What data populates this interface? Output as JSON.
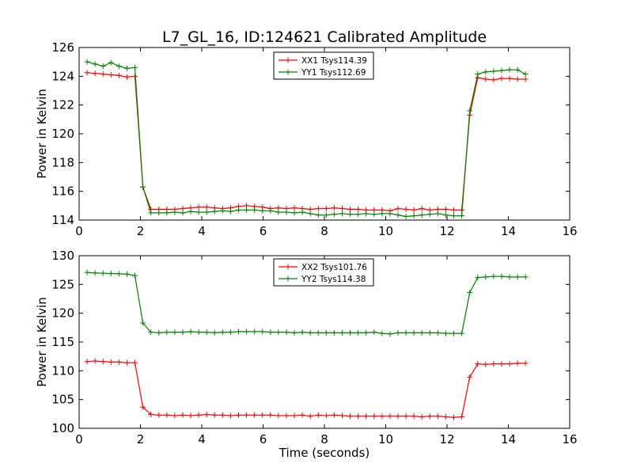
{
  "title": "L7_GL_16, ID:124621 Calibrated Amplitude",
  "chart_data": [
    {
      "type": "line",
      "ylabel": "Power in Kelvin",
      "xlabel": "",
      "xlim": [
        0,
        16
      ],
      "ylim": [
        114,
        126
      ],
      "xticks": [
        "0",
        "2",
        "4",
        "6",
        "8",
        "10",
        "12",
        "14",
        "16"
      ],
      "yticks": [
        "114",
        "116",
        "118",
        "120",
        "122",
        "124",
        "126"
      ],
      "legend_position": "top-center",
      "x": [
        0.26,
        0.52,
        0.78,
        1.04,
        1.3,
        1.56,
        1.82,
        2.08,
        2.34,
        2.6,
        2.86,
        3.12,
        3.38,
        3.64,
        3.9,
        4.16,
        4.42,
        4.68,
        4.94,
        5.2,
        5.46,
        5.72,
        5.98,
        6.24,
        6.5,
        6.76,
        7.02,
        7.28,
        7.54,
        7.8,
        8.06,
        8.32,
        8.58,
        8.84,
        9.1,
        9.36,
        9.62,
        9.88,
        10.14,
        10.4,
        10.66,
        10.92,
        11.18,
        11.44,
        11.7,
        11.96,
        12.22,
        12.48,
        12.74,
        13.0,
        13.26,
        13.52,
        13.78,
        14.04,
        14.3,
        14.56
      ],
      "series": [
        {
          "name": "XX1 Tsys114.39",
          "color": "#ff0000",
          "values": [
            124.25,
            124.2,
            124.15,
            124.1,
            124.05,
            123.95,
            124.0,
            116.3,
            114.75,
            114.75,
            114.75,
            114.75,
            114.8,
            114.85,
            114.9,
            114.9,
            114.85,
            114.8,
            114.85,
            114.95,
            115.0,
            114.95,
            114.9,
            114.8,
            114.85,
            114.8,
            114.85,
            114.8,
            114.75,
            114.8,
            114.8,
            114.85,
            114.8,
            114.75,
            114.75,
            114.7,
            114.7,
            114.7,
            114.65,
            114.8,
            114.75,
            114.7,
            114.8,
            114.7,
            114.75,
            114.75,
            114.7,
            114.7,
            121.3,
            123.9,
            123.8,
            123.75,
            123.85,
            123.85,
            123.8,
            123.8
          ]
        },
        {
          "name": "YY1 Tsys112.69",
          "color": "#008000",
          "values": [
            125.0,
            124.85,
            124.7,
            124.95,
            124.7,
            124.55,
            124.6,
            116.3,
            114.5,
            114.5,
            114.5,
            114.55,
            114.5,
            114.6,
            114.55,
            114.55,
            114.6,
            114.65,
            114.6,
            114.7,
            114.7,
            114.7,
            114.65,
            114.65,
            114.55,
            114.55,
            114.5,
            114.55,
            114.45,
            114.35,
            114.35,
            114.4,
            114.45,
            114.4,
            114.4,
            114.45,
            114.4,
            114.45,
            114.45,
            114.35,
            114.25,
            114.3,
            114.35,
            114.4,
            114.45,
            114.35,
            114.3,
            114.3,
            121.6,
            124.15,
            124.3,
            124.35,
            124.4,
            124.45,
            124.45,
            124.15
          ]
        }
      ]
    },
    {
      "type": "line",
      "ylabel": "Power in Kelvin",
      "xlabel": "Time (seconds)",
      "xlim": [
        0,
        16
      ],
      "ylim": [
        100,
        130
      ],
      "xticks": [
        "0",
        "2",
        "4",
        "6",
        "8",
        "10",
        "12",
        "14",
        "16"
      ],
      "yticks": [
        "100",
        "105",
        "110",
        "115",
        "120",
        "125",
        "130"
      ],
      "legend_position": "top-center",
      "x": [
        0.26,
        0.52,
        0.78,
        1.04,
        1.3,
        1.56,
        1.82,
        2.08,
        2.34,
        2.6,
        2.86,
        3.12,
        3.38,
        3.64,
        3.9,
        4.16,
        4.42,
        4.68,
        4.94,
        5.2,
        5.46,
        5.72,
        5.98,
        6.24,
        6.5,
        6.76,
        7.02,
        7.28,
        7.54,
        7.8,
        8.06,
        8.32,
        8.58,
        8.84,
        9.1,
        9.36,
        9.62,
        9.88,
        10.14,
        10.4,
        10.66,
        10.92,
        11.18,
        11.44,
        11.7,
        11.96,
        12.22,
        12.48,
        12.74,
        13.0,
        13.26,
        13.52,
        13.78,
        14.04,
        14.3,
        14.56
      ],
      "series": [
        {
          "name": "XX2 Tsys101.76",
          "color": "#ff0000",
          "values": [
            111.6,
            111.7,
            111.6,
            111.5,
            111.5,
            111.4,
            111.4,
            103.7,
            102.4,
            102.3,
            102.3,
            102.2,
            102.3,
            102.2,
            102.3,
            102.4,
            102.3,
            102.3,
            102.2,
            102.3,
            102.3,
            102.3,
            102.3,
            102.3,
            102.2,
            102.2,
            102.2,
            102.3,
            102.1,
            102.3,
            102.2,
            102.3,
            102.2,
            102.1,
            102.1,
            102.1,
            102.1,
            102.1,
            102.1,
            102.1,
            102.1,
            102.1,
            102.0,
            102.1,
            102.1,
            102.0,
            101.9,
            102.0,
            108.9,
            111.2,
            111.1,
            111.2,
            111.2,
            111.2,
            111.3,
            111.3
          ]
        },
        {
          "name": "YY2 Tsys114.38",
          "color": "#008000",
          "values": [
            127.1,
            127.0,
            126.95,
            126.9,
            126.85,
            126.8,
            126.55,
            118.3,
            116.7,
            116.6,
            116.7,
            116.7,
            116.7,
            116.8,
            116.7,
            116.7,
            116.6,
            116.7,
            116.7,
            116.8,
            116.8,
            116.8,
            116.8,
            116.7,
            116.7,
            116.7,
            116.6,
            116.7,
            116.6,
            116.6,
            116.6,
            116.6,
            116.6,
            116.6,
            116.6,
            116.6,
            116.7,
            116.5,
            116.4,
            116.6,
            116.6,
            116.6,
            116.6,
            116.6,
            116.6,
            116.5,
            116.5,
            116.5,
            123.6,
            126.2,
            126.3,
            126.4,
            126.4,
            126.3,
            126.3,
            126.3
          ]
        }
      ]
    }
  ]
}
